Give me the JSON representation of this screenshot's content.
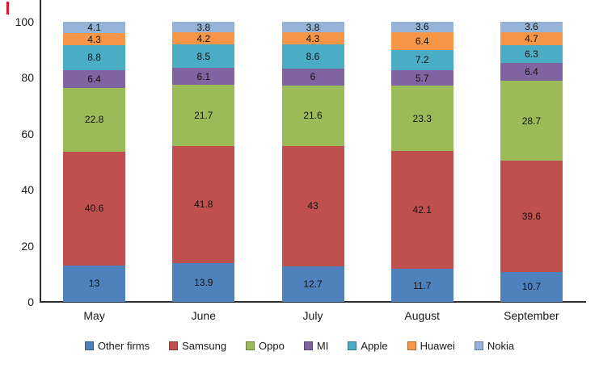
{
  "chart_data": {
    "type": "bar",
    "stacked": true,
    "title": "",
    "xlabel": "",
    "ylabel": "",
    "categories": [
      "May",
      "June",
      "July",
      "August",
      "September"
    ],
    "series": [
      {
        "name": "Other firms",
        "color": "#4F81BD",
        "values": [
          13,
          13.9,
          12.7,
          11.7,
          10.7
        ]
      },
      {
        "name": "Samsung",
        "color": "#C0504D",
        "values": [
          40.6,
          41.8,
          43,
          42.1,
          39.6
        ]
      },
      {
        "name": "Oppo",
        "color": "#9BBB59",
        "values": [
          22.8,
          21.7,
          21.6,
          23.3,
          28.7
        ]
      },
      {
        "name": "MI",
        "color": "#8064A2",
        "values": [
          6.4,
          6.1,
          6,
          5.7,
          6.4
        ]
      },
      {
        "name": "Apple",
        "color": "#4BACC6",
        "values": [
          8.8,
          8.5,
          8.6,
          7.2,
          6.3
        ]
      },
      {
        "name": "Huawei",
        "color": "#F79646",
        "values": [
          4.3,
          4.2,
          4.3,
          6.4,
          4.7
        ]
      },
      {
        "name": "Nokia",
        "color": "#95B3D7",
        "values": [
          4.1,
          3.8,
          3.8,
          3.6,
          3.6
        ]
      }
    ],
    "ylim": [
      0,
      100
    ],
    "yticks": [
      0,
      20,
      40,
      60,
      80,
      100
    ],
    "grid": false,
    "legend_position": "bottom",
    "value_labels": true
  },
  "colors": {
    "axis": "#2e2e2e",
    "text": "#1a1a1a",
    "red_mark": "#e8112d"
  }
}
